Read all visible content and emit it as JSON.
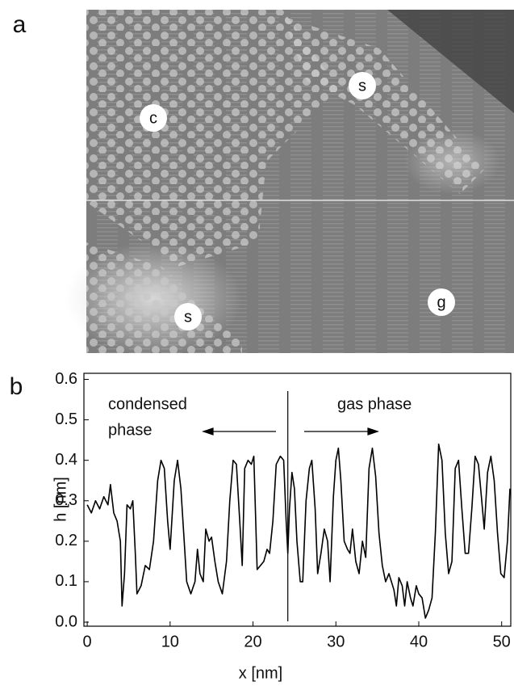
{
  "image_panel": {
    "panel_label": "a",
    "markers": [
      "c",
      "s",
      "s",
      "g"
    ]
  },
  "chart_data": {
    "type": "line",
    "panel_label": "b",
    "x_label": "x [nm]",
    "y_label": "h [nm]",
    "annotations": [
      "condensed",
      "phase",
      "gas phase"
    ],
    "divider_x": 24.2,
    "xlim": [
      -0.4,
      51.1
    ],
    "xticks": [
      0,
      10,
      20,
      30,
      40,
      50
    ],
    "ylim": [
      -0.01,
      0.615
    ],
    "yticks": [
      {
        "value": 0,
        "label": "0.0"
      },
      0.1,
      0.2,
      0.3,
      0.4,
      0.5,
      0.6
    ],
    "series": [
      {
        "color": "#000000",
        "x": [
          0,
          0.5,
          1,
          1.5,
          2,
          2.5,
          2.8,
          3.2,
          3.6,
          4,
          4.2,
          4.5,
          4.8,
          5.2,
          5.5,
          5.8,
          6,
          6.5,
          7,
          7.5,
          8,
          8.5,
          8.9,
          9.3,
          9.7,
          10,
          10.5,
          10.9,
          11.3,
          11.7,
          12,
          12.5,
          13,
          13.3,
          13.6,
          14,
          14.3,
          14.7,
          15,
          15.4,
          15.8,
          16.3,
          16.8,
          17.2,
          17.6,
          18,
          18.4,
          18.7,
          19,
          19.4,
          19.8,
          20.1,
          20.5,
          20.9,
          21.3,
          21.7,
          22,
          22.4,
          22.8,
          23.3,
          23.7,
          24,
          24.2,
          24.4,
          24.7,
          25,
          25.3,
          25.7,
          26,
          26.4,
          26.8,
          27.1,
          27.5,
          27.8,
          28.2,
          28.6,
          29,
          29.3,
          29.7,
          30,
          30.3,
          30.6,
          31,
          31.4,
          31.7,
          32,
          32.4,
          32.8,
          33.2,
          33.6,
          34,
          34.4,
          34.8,
          35.2,
          35.6,
          36,
          36.4,
          36.7,
          37,
          37.3,
          37.6,
          38,
          38.3,
          38.6,
          39,
          39.3,
          39.7,
          40,
          40.4,
          40.8,
          41.2,
          41.6,
          42,
          42.4,
          42.8,
          43.2,
          43.6,
          44,
          44.4,
          44.8,
          45.2,
          45.6,
          46,
          46.4,
          46.8,
          47.2,
          47.6,
          47.9,
          48.3,
          48.7,
          49.1,
          49.5,
          49.9,
          50.3,
          50.7,
          51
        ],
        "values": [
          0.29,
          0.27,
          0.3,
          0.28,
          0.31,
          0.29,
          0.34,
          0.27,
          0.25,
          0.2,
          0.04,
          0.12,
          0.29,
          0.28,
          0.3,
          0.17,
          0.07,
          0.09,
          0.14,
          0.13,
          0.2,
          0.35,
          0.4,
          0.38,
          0.25,
          0.18,
          0.35,
          0.4,
          0.33,
          0.2,
          0.1,
          0.07,
          0.1,
          0.18,
          0.12,
          0.1,
          0.23,
          0.2,
          0.21,
          0.15,
          0.1,
          0.07,
          0.15,
          0.3,
          0.4,
          0.39,
          0.25,
          0.14,
          0.38,
          0.4,
          0.39,
          0.41,
          0.13,
          0.14,
          0.15,
          0.18,
          0.17,
          0.25,
          0.39,
          0.41,
          0.4,
          0.25,
          0.17,
          0.28,
          0.37,
          0.33,
          0.2,
          0.1,
          0.1,
          0.3,
          0.38,
          0.4,
          0.28,
          0.12,
          0.17,
          0.23,
          0.2,
          0.1,
          0.31,
          0.4,
          0.43,
          0.35,
          0.2,
          0.18,
          0.17,
          0.23,
          0.15,
          0.12,
          0.2,
          0.16,
          0.38,
          0.43,
          0.36,
          0.22,
          0.14,
          0.1,
          0.12,
          0.1,
          0.08,
          0.04,
          0.11,
          0.09,
          0.04,
          0.1,
          0.06,
          0.04,
          0.09,
          0.07,
          0.06,
          0.01,
          0.03,
          0.06,
          0.22,
          0.44,
          0.4,
          0.22,
          0.12,
          0.15,
          0.38,
          0.4,
          0.28,
          0.17,
          0.17,
          0.28,
          0.41,
          0.39,
          0.3,
          0.23,
          0.37,
          0.41,
          0.35,
          0.22,
          0.12,
          0.11,
          0.2,
          0.33
        ]
      }
    ]
  }
}
